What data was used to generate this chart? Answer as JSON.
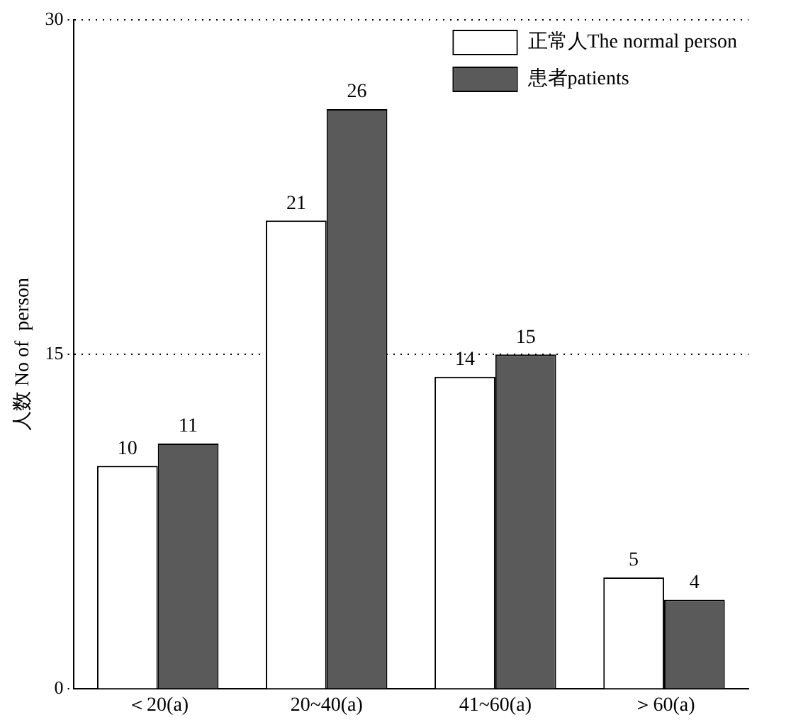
{
  "chart_data": {
    "type": "bar",
    "ylabel": "人数 No of  person",
    "categories": [
      "＜20(a)",
      "20~40(a)",
      "41~60(a)",
      "＞60(a)"
    ],
    "series": [
      {
        "name": "正常人The normal person",
        "color": "#ffffff",
        "values": [
          10,
          21,
          14,
          5
        ]
      },
      {
        "name": "患者patients",
        "color": "#5a5a5a",
        "values": [
          11,
          26,
          15,
          4
        ]
      }
    ],
    "ylim": [
      0,
      30
    ],
    "yticks": [
      0,
      15,
      30
    ],
    "grid": "y",
    "legend": "top right",
    "data_labels": true
  }
}
